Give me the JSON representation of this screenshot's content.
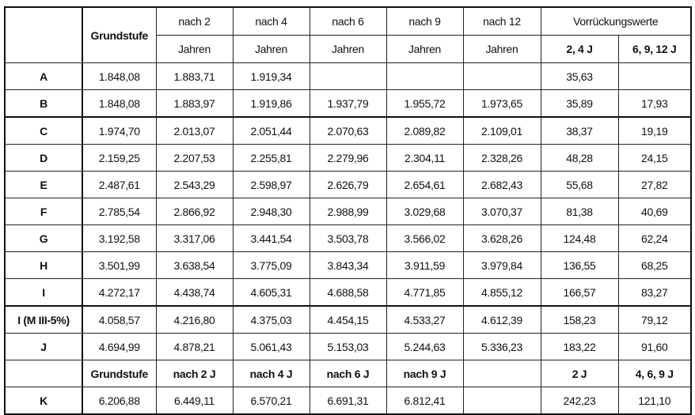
{
  "header": {
    "grundstufe": "Grundstufe",
    "nach2": [
      "nach 2",
      "Jahren"
    ],
    "nach4": [
      "nach 4",
      "Jahren"
    ],
    "nach6": [
      "nach 6",
      "Jahren"
    ],
    "nach9": [
      "nach 9",
      "Jahren"
    ],
    "nach12": [
      "nach 12",
      "Jahren"
    ],
    "vorrueckung": "Vorrückungswerte",
    "v1": "2, 4 J",
    "v2": "6, 9, 12 J"
  },
  "rows": [
    {
      "label": "A",
      "values": [
        "1.848,08",
        "1.883,71",
        "1.919,34",
        "",
        "",
        "",
        "35,63",
        ""
      ]
    },
    {
      "label": "B",
      "values": [
        "1.848,08",
        "1.883,97",
        "1.919,86",
        "1.937,79",
        "1.955,72",
        "1.973,65",
        "35,89",
        "17,93"
      ]
    },
    {
      "label": "C",
      "values": [
        "1.974,70",
        "2.013,07",
        "2.051,44",
        "2.070,63",
        "2.089,82",
        "2.109,01",
        "38,37",
        "19,19"
      ]
    },
    {
      "label": "D",
      "values": [
        "2.159,25",
        "2.207,53",
        "2.255,81",
        "2.279,96",
        "2.304,11",
        "2.328,26",
        "48,28",
        "24,15"
      ]
    },
    {
      "label": "E",
      "values": [
        "2.487,61",
        "2.543,29",
        "2.598,97",
        "2.626,79",
        "2.654,61",
        "2.682,43",
        "55,68",
        "27,82"
      ]
    },
    {
      "label": "F",
      "values": [
        "2.785,54",
        "2.866,92",
        "2.948,30",
        "2.988,99",
        "3.029,68",
        "3.070,37",
        "81,38",
        "40,69"
      ]
    },
    {
      "label": "G",
      "values": [
        "3.192,58",
        "3.317,06",
        "3.441,54",
        "3.503,78",
        "3.566,02",
        "3.628,26",
        "124,48",
        "62,24"
      ]
    },
    {
      "label": "H",
      "values": [
        "3.501,99",
        "3.638,54",
        "3.775,09",
        "3.843,34",
        "3.911,59",
        "3.979,84",
        "136,55",
        "68,25"
      ]
    },
    {
      "label": "I",
      "values": [
        "4.272,17",
        "4.438,74",
        "4.605,31",
        "4.688,58",
        "4.771,85",
        "4.855,12",
        "166,57",
        "83,27"
      ]
    },
    {
      "label": "I (M III-5%)",
      "values": [
        "4.058,57",
        "4.216,80",
        "4.375,03",
        "4.454,15",
        "4.533,27",
        "4.612,39",
        "158,23",
        "79,12"
      ]
    },
    {
      "label": "J",
      "values": [
        "4.694,99",
        "4.878,21",
        "5.061,43",
        "5.153,03",
        "5.244,63",
        "5.336,23",
        "183,22",
        "91,60"
      ]
    }
  ],
  "subheader": [
    "Grundstufe",
    "nach 2 J",
    "nach 4 J",
    "nach 6 J",
    "nach 9 J",
    "",
    "2 J",
    "4, 6, 9 J"
  ],
  "k_row": {
    "label": "K",
    "values": [
      "6.206,88",
      "6.449,11",
      "6.570,21",
      "6.691,31",
      "6.812,41",
      "",
      "242,23",
      "121,10"
    ]
  }
}
